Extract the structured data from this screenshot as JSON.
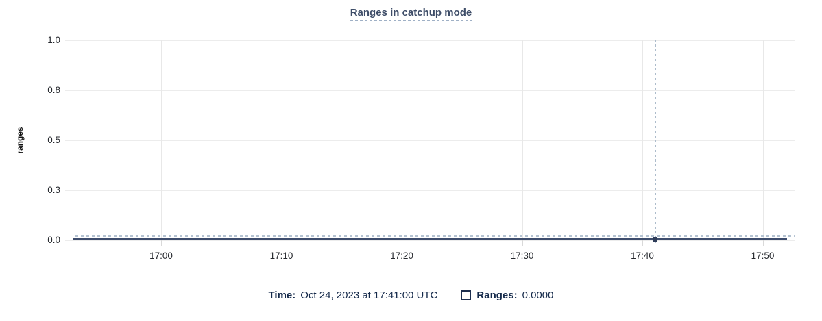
{
  "title": "Ranges in catchup mode",
  "legend": {
    "time_label": "Time:",
    "time_value": "Oct 24, 2023 at 17:41:00 UTC",
    "series_swatch_icon": "series-color-swatch-square",
    "series_label": "Ranges:",
    "series_value": "0.0000"
  },
  "colors": {
    "title_text": "#3e4d68",
    "legend_text": "#14294a",
    "series_line": "#3e4d6d",
    "hover_marker": "#2e3c59",
    "crosshair": "#adbccb",
    "dashed_guideline": "#b5c3d2",
    "gridline": "#ececec"
  },
  "chart_data": {
    "type": "line",
    "title": "Ranges in catchup mode",
    "xlabel": "",
    "ylabel": "ranges",
    "ylim": [
      0,
      1
    ],
    "grid": true,
    "x_tick_labels": [
      "17:00",
      "17:10",
      "17:20",
      "17:30",
      "17:40",
      "17:50"
    ],
    "y_tick_labels": [
      "1.0",
      "0.8",
      "0.5",
      "0.3",
      "0.0"
    ],
    "series": [
      {
        "name": "Ranges",
        "categories": [
          "17:00",
          "17:10",
          "17:20",
          "17:30",
          "17:40",
          "17:50"
        ],
        "values": [
          0,
          0,
          0,
          0,
          0,
          0
        ],
        "style": "flat line at 0 across entire window"
      }
    ],
    "hover_point": {
      "time": "Oct 24, 2023 at 17:41:00 UTC",
      "x_label": "17:41",
      "value": 0.0
    },
    "legend_position": "bottom-center"
  }
}
